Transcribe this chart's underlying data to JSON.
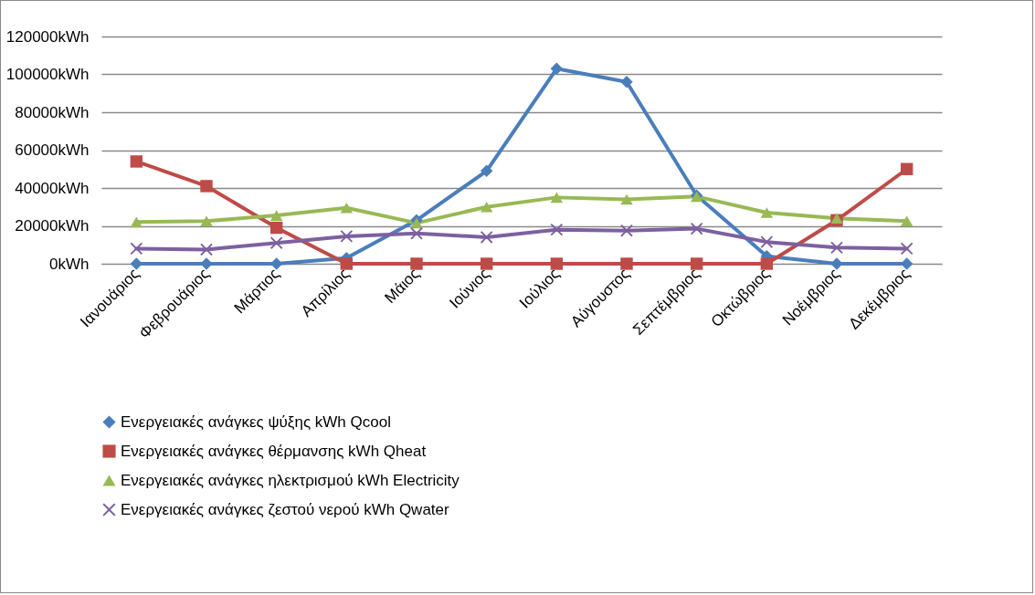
{
  "chart_data": {
    "type": "line",
    "categories": [
      "Ιανουάριος",
      "Φεβρουάριος",
      "Μάρτιος",
      "Απρίλιος",
      "Μάιος",
      "Ιούνιος",
      "Ιούλιος",
      "Αύγουστος",
      "Σεπτέμβριος",
      "Οκτώβριος",
      "Νοέμβριος",
      "Δεκέμβριος"
    ],
    "series": [
      {
        "name": "Ενεργειακές ανάγκες ψύξης kWh Qcool",
        "color": "#4a7ebb",
        "marker": "diamond",
        "values": [
          0,
          0,
          0,
          3000,
          23000,
          49000,
          103000,
          96000,
          36000,
          4000,
          0,
          0
        ]
      },
      {
        "name": "Ενεργειακές ανάγκες θέρμανσης kWh Qheat",
        "color": "#be4b48",
        "marker": "square",
        "values": [
          54000,
          41000,
          19000,
          0,
          0,
          0,
          0,
          0,
          0,
          0,
          23000,
          50000
        ]
      },
      {
        "name": "Ενεργειακές ανάγκες ηλεκτρισμού kWh Electricity",
        "color": "#98b954",
        "marker": "triangle",
        "values": [
          22000,
          22500,
          25500,
          29500,
          21500,
          30000,
          35000,
          34000,
          35500,
          27000,
          24000,
          22500
        ]
      },
      {
        "name": "Ενεργειακές ανάγκες ζεστού νερού kWh Qwater",
        "color": "#7d60a0",
        "marker": "cross",
        "values": [
          8000,
          7500,
          11000,
          14500,
          16000,
          14000,
          18000,
          17500,
          18500,
          11500,
          8500,
          8000
        ]
      }
    ],
    "ylim": [
      0,
      120000
    ],
    "yticks": [
      {
        "value": 0,
        "label": "0kWh"
      },
      {
        "value": 20000,
        "label": "20000kWh"
      },
      {
        "value": 40000,
        "label": "40000kWh"
      },
      {
        "value": 60000,
        "label": "60000kWh"
      },
      {
        "value": 80000,
        "label": "80000kWh"
      },
      {
        "value": 100000,
        "label": "100000kWh"
      },
      {
        "value": 120000,
        "label": "120000kWh"
      }
    ],
    "grid": "y",
    "legend": "bottom",
    "line_style": "solid"
  }
}
